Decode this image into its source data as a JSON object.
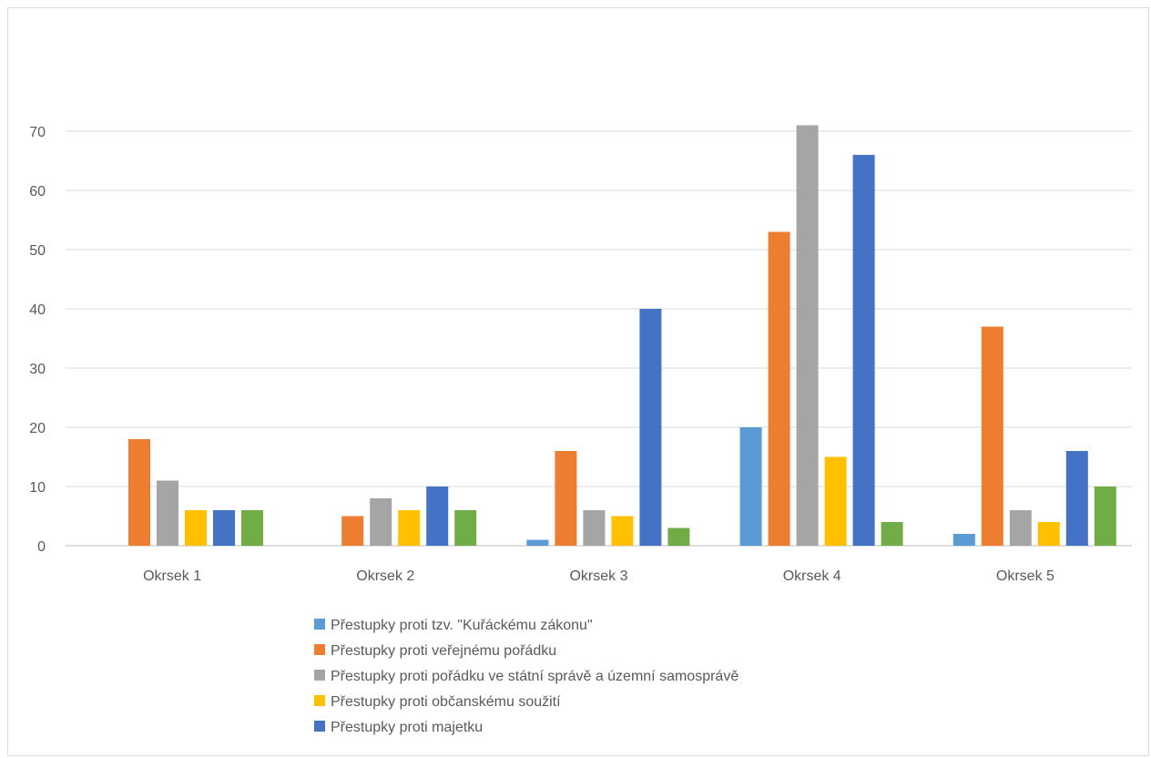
{
  "chart_data": {
    "type": "bar",
    "title": "",
    "xlabel": "",
    "ylabel": "",
    "ylim": [
      0,
      70
    ],
    "yticks": [
      0,
      10,
      20,
      30,
      40,
      50,
      60,
      70
    ],
    "grid": true,
    "legend_position": "bottom",
    "categories": [
      "Okrsek 1",
      "Okrsek 2",
      "Okrsek 3",
      "Okrsek 4",
      "Okrsek 5"
    ],
    "series": [
      {
        "name": "Přestupky proti tzv. \"Kuřáckému zákonu\"",
        "color": "#5b9bd5",
        "values": [
          0,
          0,
          1,
          20,
          2
        ]
      },
      {
        "name": "Přestupky proti veřejnému pořádku",
        "color": "#ed7d31",
        "values": [
          18,
          5,
          16,
          53,
          37
        ]
      },
      {
        "name": "Přestupky proti pořádku ve státní správě a územní samosprávě",
        "color": "#a5a5a5",
        "values": [
          11,
          8,
          6,
          71,
          6
        ]
      },
      {
        "name": "Přestupky proti občanskému soužití",
        "color": "#ffc000",
        "values": [
          6,
          6,
          5,
          15,
          4
        ]
      },
      {
        "name": "Přestupky proti majetku",
        "color": "#4472c4",
        "values": [
          6,
          10,
          40,
          66,
          16
        ]
      },
      {
        "name": "",
        "color": "#70ad47",
        "values": [
          6,
          6,
          3,
          4,
          10
        ]
      }
    ]
  }
}
